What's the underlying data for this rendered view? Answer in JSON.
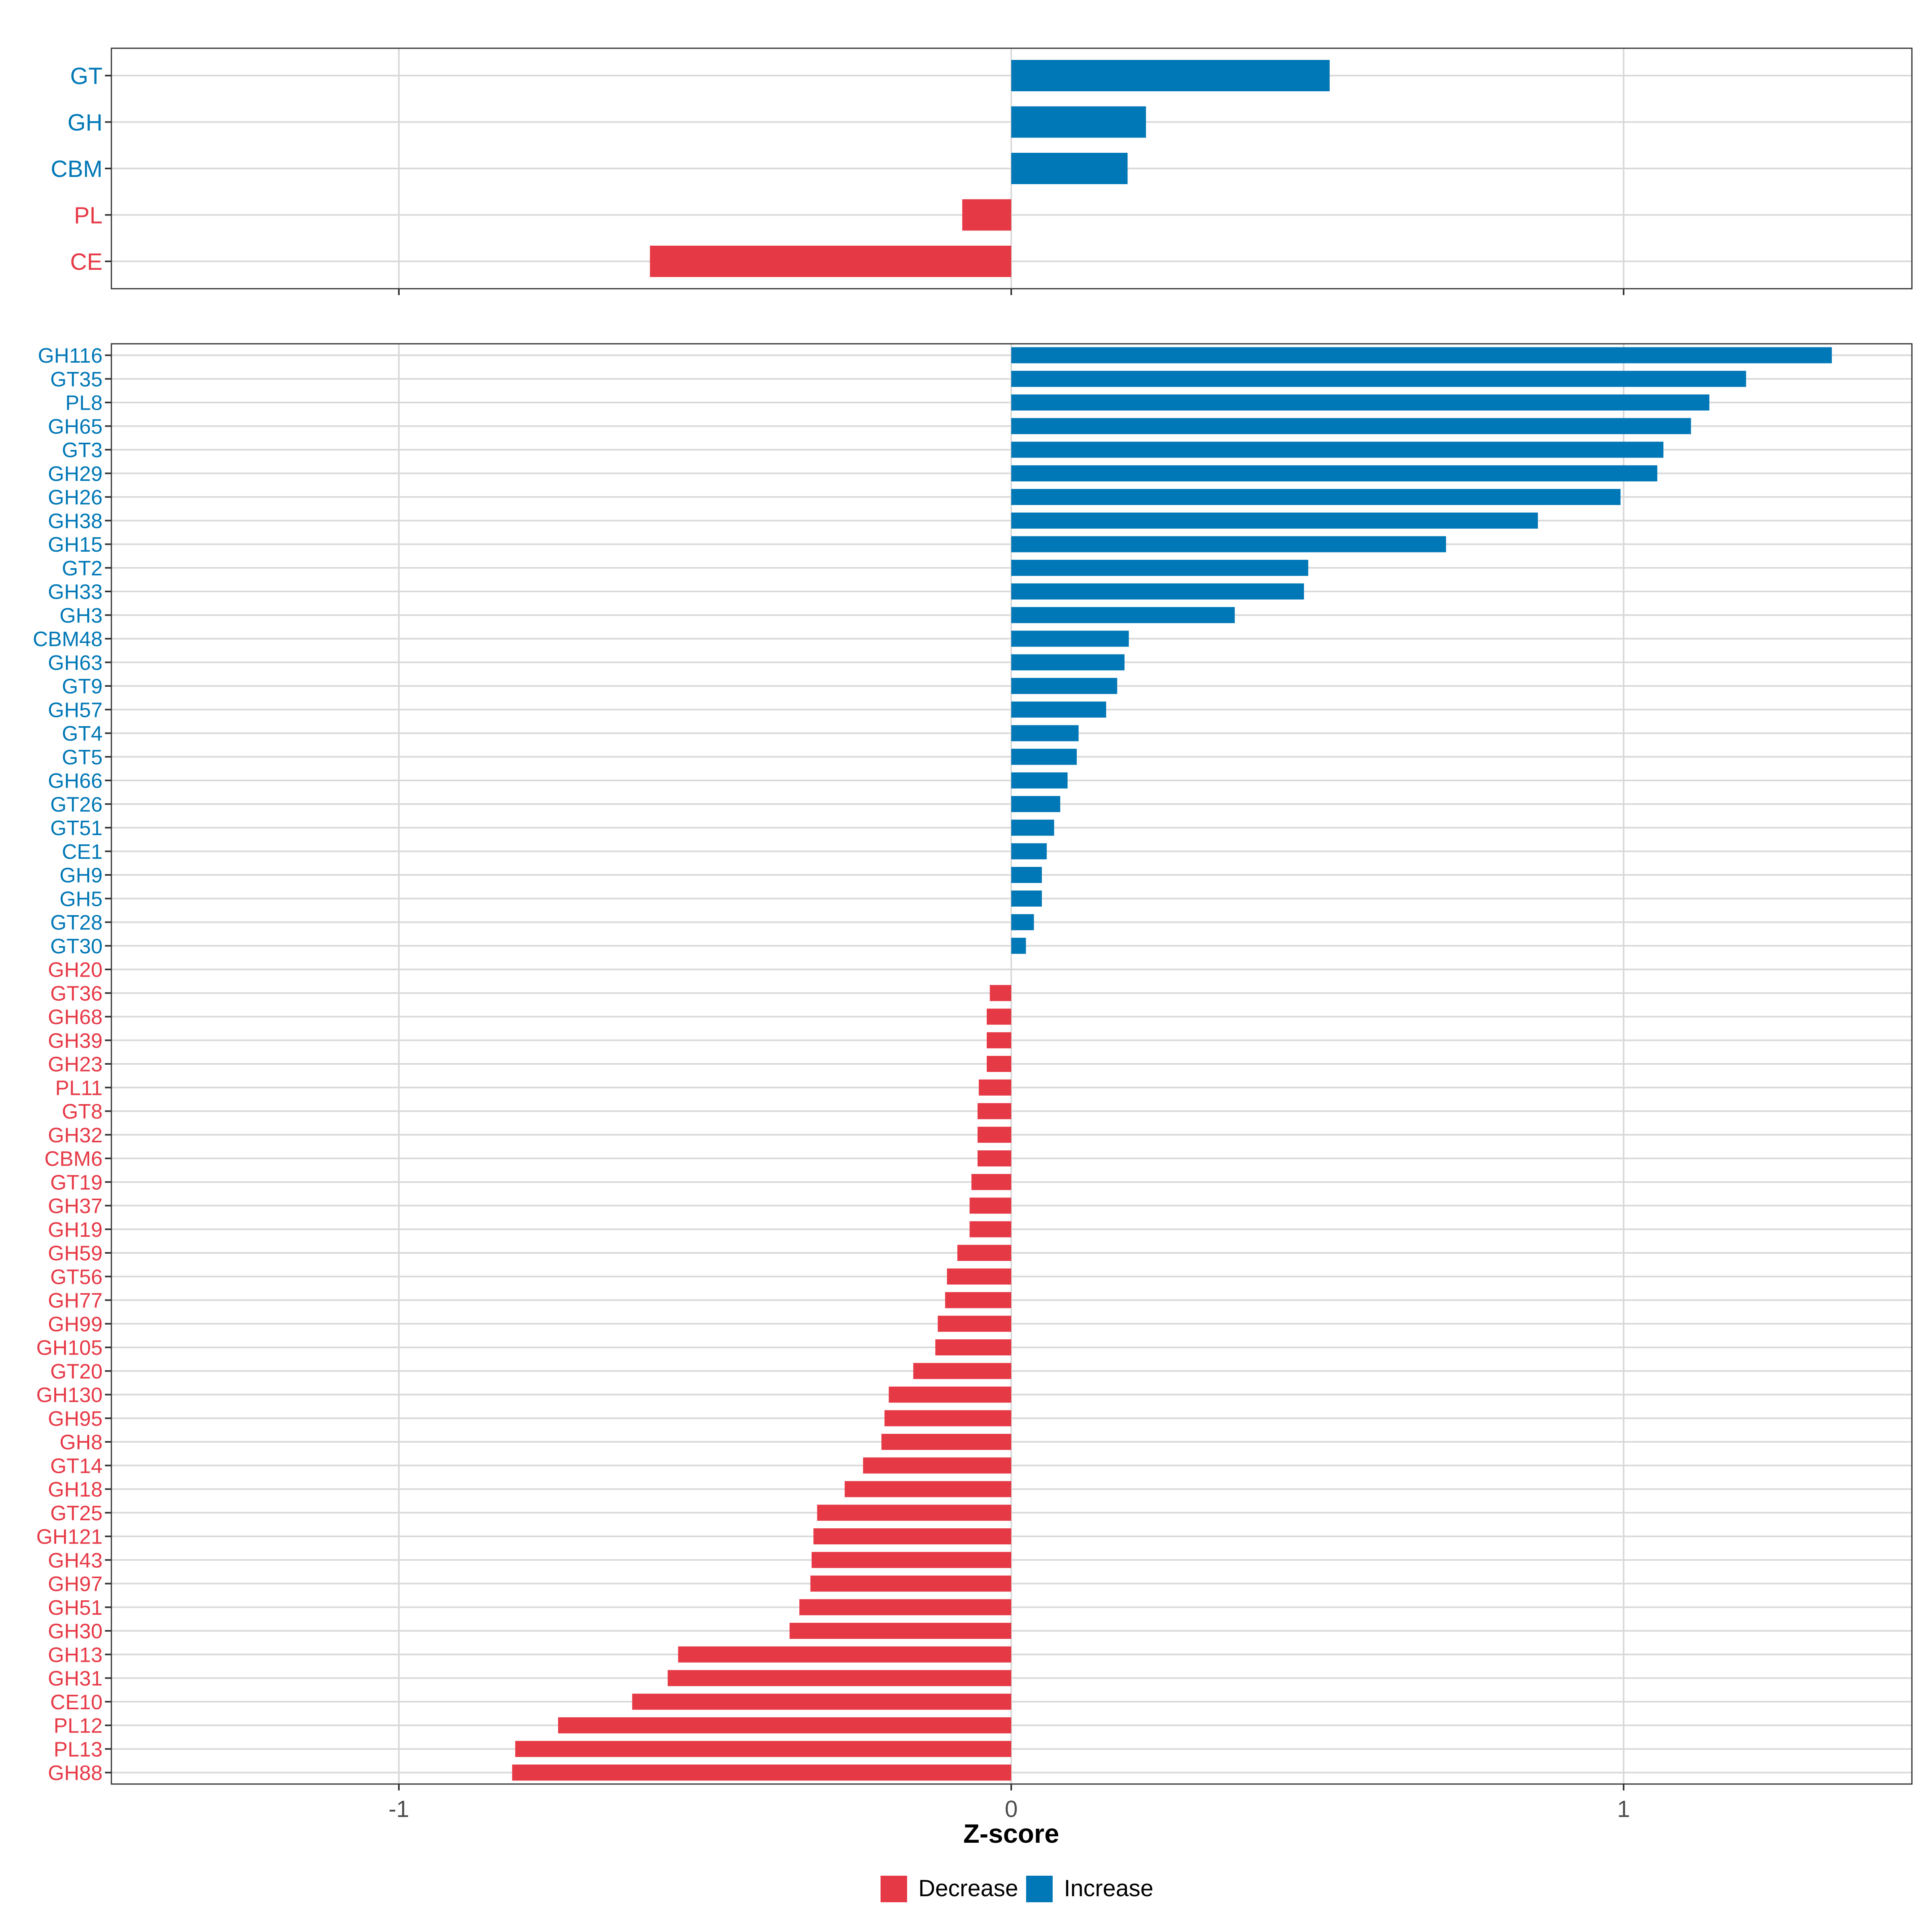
{
  "chart_data": [
    {
      "type": "bar",
      "orientation": "horizontal",
      "panel": "class-level",
      "categories": [
        "GT",
        "GH",
        "CBM",
        "PL",
        "CE"
      ],
      "values": [
        0.52,
        0.22,
        0.19,
        -0.08,
        -0.59
      ],
      "groups": [
        "Increase",
        "Increase",
        "Increase",
        "Decrease",
        "Decrease"
      ],
      "xlim": [
        -1.47,
        1.47
      ],
      "grid": true
    },
    {
      "type": "bar",
      "orientation": "horizontal",
      "panel": "family-level",
      "categories": [
        "GH116",
        "GT35",
        "PL8",
        "GH65",
        "GT3",
        "GH29",
        "GH26",
        "GH38",
        "GH15",
        "GT2",
        "GH33",
        "GH3",
        "CBM48",
        "GH63",
        "GT9",
        "GH57",
        "GT4",
        "GT5",
        "GH66",
        "GT26",
        "GT51",
        "CE1",
        "GH9",
        "GH5",
        "GT28",
        "GT30",
        "GH20",
        "GT36",
        "GH68",
        "GH39",
        "GH23",
        "PL11",
        "GT8",
        "GH32",
        "CBM6",
        "GT19",
        "GH37",
        "GH19",
        "GH59",
        "GT56",
        "GH77",
        "GH99",
        "GH105",
        "GT20",
        "GH130",
        "GH95",
        "GH8",
        "GT14",
        "GH18",
        "GT25",
        "GH121",
        "GH43",
        "GH97",
        "GH51",
        "GH30",
        "GH13",
        "GH31",
        "CE10",
        "PL12",
        "PL13",
        "GH88"
      ],
      "values": [
        1.34,
        1.2,
        1.14,
        1.11,
        1.065,
        1.055,
        0.995,
        0.86,
        0.71,
        0.485,
        0.478,
        0.365,
        0.192,
        0.185,
        0.173,
        0.155,
        0.11,
        0.107,
        0.092,
        0.08,
        0.07,
        0.058,
        0.05,
        0.05,
        0.037,
        0.024,
        0.0,
        -0.035,
        -0.04,
        -0.04,
        -0.04,
        -0.053,
        -0.055,
        -0.055,
        -0.055,
        -0.065,
        -0.068,
        -0.068,
        -0.088,
        -0.105,
        -0.108,
        -0.12,
        -0.124,
        -0.16,
        -0.2,
        -0.207,
        -0.212,
        -0.242,
        -0.272,
        -0.317,
        -0.323,
        -0.326,
        -0.328,
        -0.346,
        -0.362,
        -0.544,
        -0.561,
        -0.619,
        -0.74,
        -0.81,
        -0.815
      ],
      "groups": [
        "Increase",
        "Increase",
        "Increase",
        "Increase",
        "Increase",
        "Increase",
        "Increase",
        "Increase",
        "Increase",
        "Increase",
        "Increase",
        "Increase",
        "Increase",
        "Increase",
        "Increase",
        "Increase",
        "Increase",
        "Increase",
        "Increase",
        "Increase",
        "Increase",
        "Increase",
        "Increase",
        "Increase",
        "Increase",
        "Increase",
        "Decrease",
        "Decrease",
        "Decrease",
        "Decrease",
        "Decrease",
        "Decrease",
        "Decrease",
        "Decrease",
        "Decrease",
        "Decrease",
        "Decrease",
        "Decrease",
        "Decrease",
        "Decrease",
        "Decrease",
        "Decrease",
        "Decrease",
        "Decrease",
        "Decrease",
        "Decrease",
        "Decrease",
        "Decrease",
        "Decrease",
        "Decrease",
        "Decrease",
        "Decrease",
        "Decrease",
        "Decrease",
        "Decrease",
        "Decrease",
        "Decrease",
        "Decrease",
        "Decrease",
        "Decrease",
        "Decrease"
      ],
      "xlim": [
        -1.47,
        1.47
      ],
      "xticks": [
        -1,
        0,
        1
      ],
      "xtick_labels": [
        "-1",
        "0",
        "1"
      ],
      "xlabel": "Z-score",
      "grid": true
    }
  ],
  "legend": {
    "position": "bottom",
    "items": [
      {
        "label": "Decrease",
        "color": "#E63946"
      },
      {
        "label": "Increase",
        "color": "#0077B6"
      }
    ]
  },
  "colors": {
    "Decrease": "#E63946",
    "Increase": "#0077B6",
    "grid": "#D9D9D9",
    "frame": "#333333",
    "tick_text": "#4D4D4D"
  }
}
